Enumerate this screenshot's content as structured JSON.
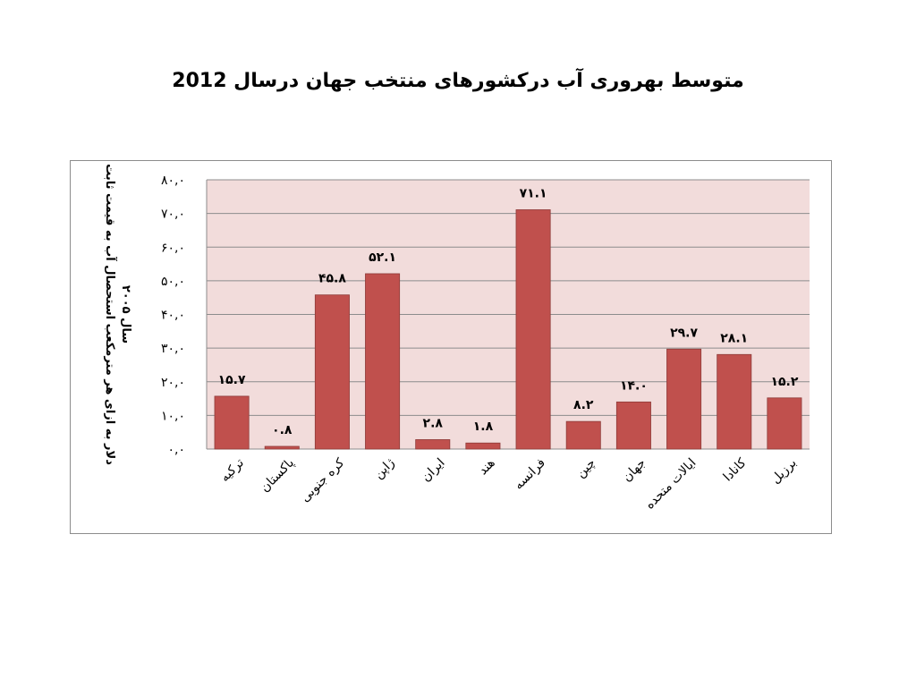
{
  "slide": {
    "title": "متوسط بهروری آب درکشورهای منتخب جهان درسال 2012"
  },
  "chart_data": {
    "type": "bar",
    "title": "",
    "categories": [
      "ترکیه",
      "پاکستان",
      "کره جنوبی",
      "ژاپن",
      "ایران",
      "هند",
      "فرانسه",
      "چین",
      "جهان",
      "ایالات متحده",
      "کانادا",
      "برزیل"
    ],
    "values": [
      15.7,
      0.8,
      45.8,
      52.1,
      2.8,
      1.8,
      71.1,
      8.2,
      14.0,
      29.7,
      28.1,
      15.2
    ],
    "value_labels": [
      "۱۵.۷",
      "۰.۸",
      "۴۵.۸",
      "۵۲.۱",
      "۲.۸",
      "۱.۸",
      "۷۱.۱",
      "۸.۲",
      "۱۴.۰",
      "۲۹.۷",
      "۲۸.۱",
      "۱۵.۲"
    ],
    "ylabel_lines": [
      "دلار به ازای هر مترمکعب استحصال آب به قیمت ثابت",
      "سال ۲۰۰۵"
    ],
    "xlabel": "",
    "ylim": [
      0,
      80
    ],
    "yticks": [
      0,
      10,
      20,
      30,
      40,
      50,
      60,
      70,
      80
    ],
    "ytick_labels": [
      "۰,۰",
      "۱۰,۰",
      "۲۰,۰",
      "۳۰,۰",
      "۴۰,۰",
      "۵۰,۰",
      "۶۰,۰",
      "۷۰,۰",
      "۸۰,۰"
    ],
    "grid": true,
    "legend": "none",
    "colors": {
      "bar": "#c0504d",
      "bar_stroke": "#8e3b39",
      "plot_bg": "#f2dcdb",
      "grid": "#8c8c8c"
    }
  }
}
